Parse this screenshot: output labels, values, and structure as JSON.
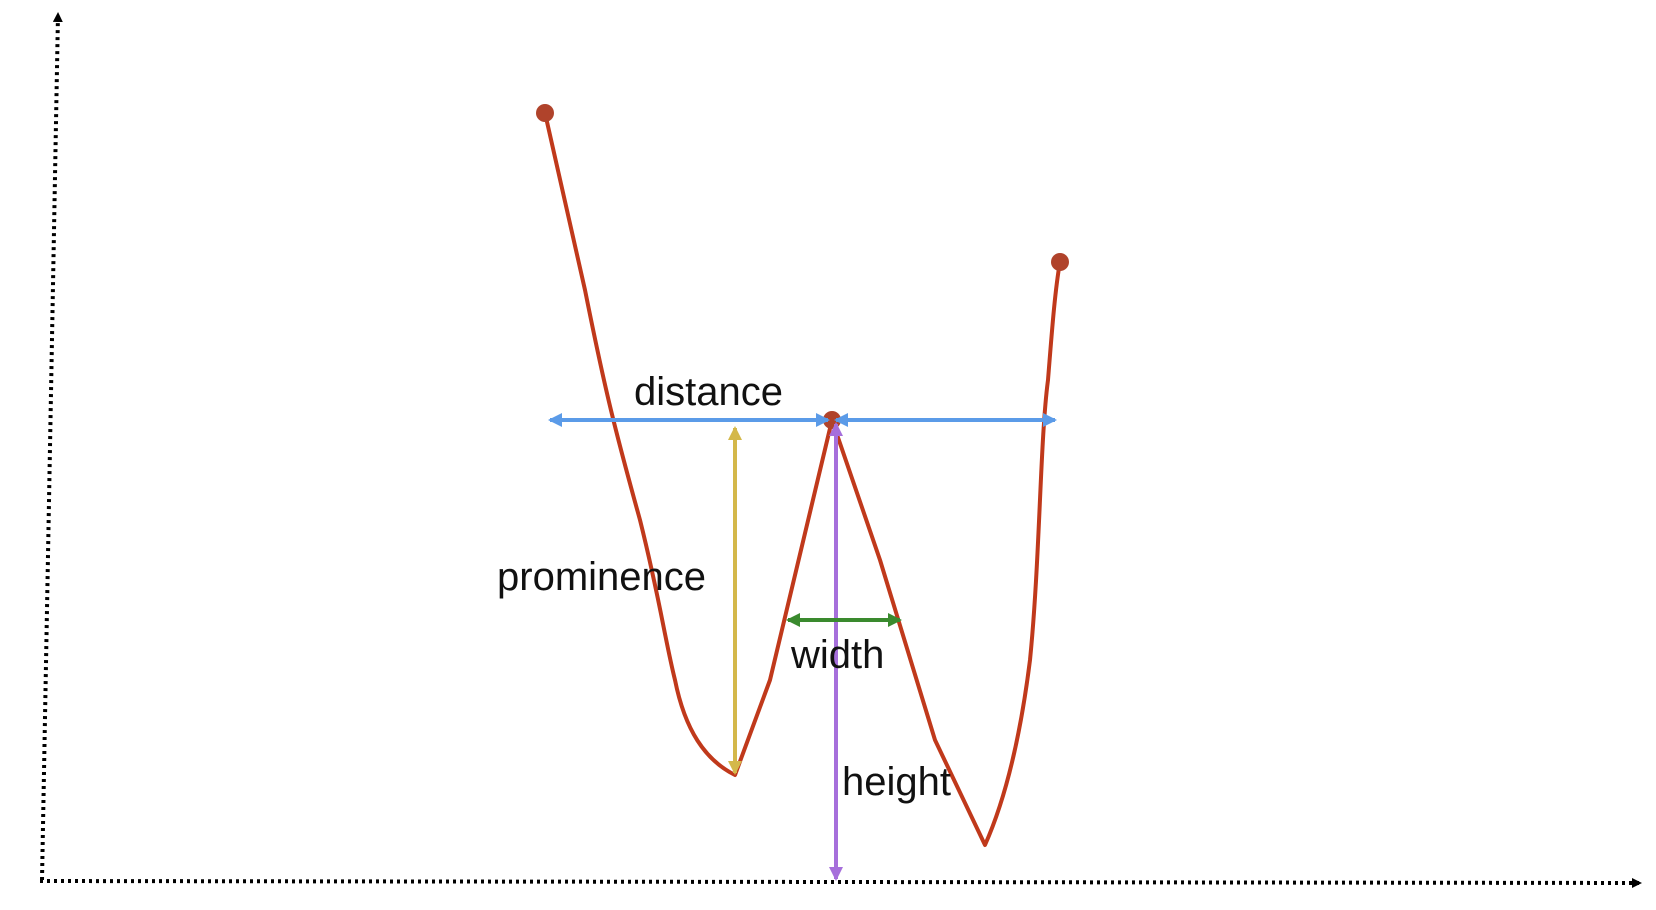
{
  "labels": {
    "distance": "distance",
    "prominence": "prominence",
    "width": "width",
    "height": "height"
  },
  "colors": {
    "axis": "#000000",
    "signal": "#C0391B",
    "marker": "#B0432B",
    "distance": "#5B9BE8",
    "prominence": "#D4B84A",
    "width": "#3A8A2E",
    "height": "#A66FDB"
  }
}
